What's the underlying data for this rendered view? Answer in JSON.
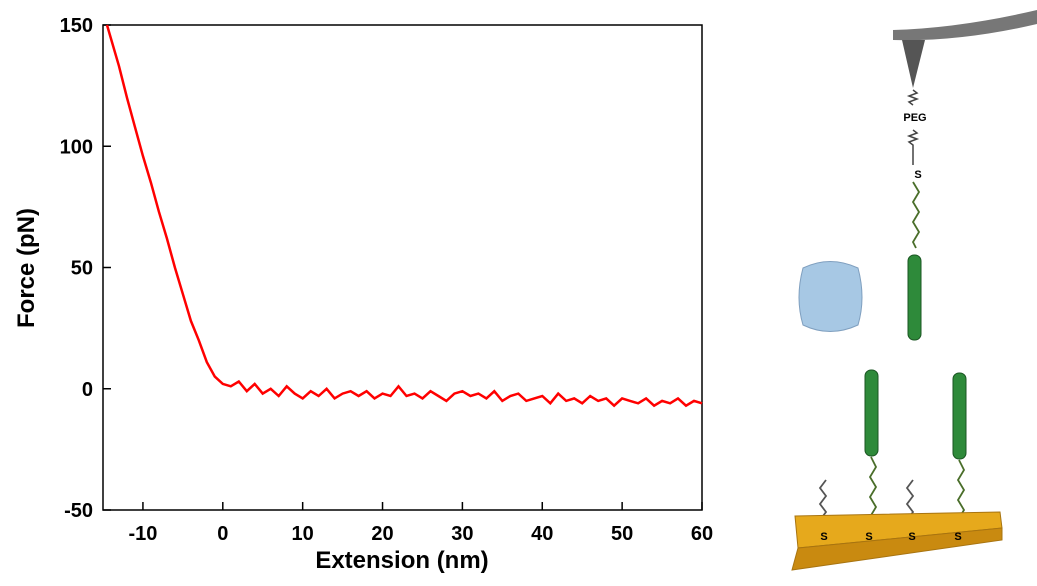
{
  "chart_data": {
    "type": "line",
    "x_label": "Extension (nm)",
    "y_label": "Force (pN)",
    "xlim": [
      -15,
      60
    ],
    "ylim": [
      -50,
      150
    ],
    "xticks": [
      -10,
      0,
      10,
      20,
      30,
      40,
      50,
      60
    ],
    "yticks": [
      -50,
      0,
      50,
      100,
      150
    ],
    "series": [
      {
        "color": "#ff0000",
        "x": [
          -14.5,
          -13,
          -12,
          -11,
          -10,
          -9,
          -8,
          -7,
          -6,
          -5,
          -4,
          -3,
          -2,
          -1,
          0,
          1,
          2,
          3,
          4,
          5,
          6,
          7,
          8,
          9,
          10,
          11,
          12,
          13,
          14,
          15,
          16,
          17,
          18,
          19,
          20,
          21,
          22,
          23,
          24,
          25,
          26,
          27,
          28,
          29,
          30,
          31,
          32,
          33,
          34,
          35,
          36,
          37,
          38,
          39,
          40,
          41,
          42,
          43,
          44,
          45,
          46,
          47,
          48,
          49,
          50,
          51,
          52,
          53,
          54,
          55,
          56,
          57,
          58,
          59,
          60
        ],
        "values": [
          150,
          133,
          120,
          108,
          96,
          85,
          73,
          62,
          50,
          39,
          28,
          20,
          11,
          5,
          2,
          1,
          3,
          -1,
          2,
          -2,
          0,
          -3,
          1,
          -2,
          -4,
          -1,
          -3,
          0,
          -4,
          -2,
          -1,
          -3,
          -1,
          -4,
          -2,
          -3,
          1,
          -3,
          -2,
          -4,
          -1,
          -3,
          -5,
          -2,
          -1,
          -3,
          -2,
          -4,
          -1,
          -5,
          -3,
          -2,
          -5,
          -4,
          -3,
          -6,
          -2,
          -5,
          -4,
          -6,
          -3,
          -5,
          -4,
          -7,
          -4,
          -5,
          -6,
          -4,
          -7,
          -5,
          -6,
          -4,
          -7,
          -5,
          -6
        ]
      }
    ]
  },
  "diagram": {
    "peg_label": "PEG",
    "sulfur_labels": [
      "S",
      "S",
      "S",
      "S",
      "S"
    ]
  }
}
